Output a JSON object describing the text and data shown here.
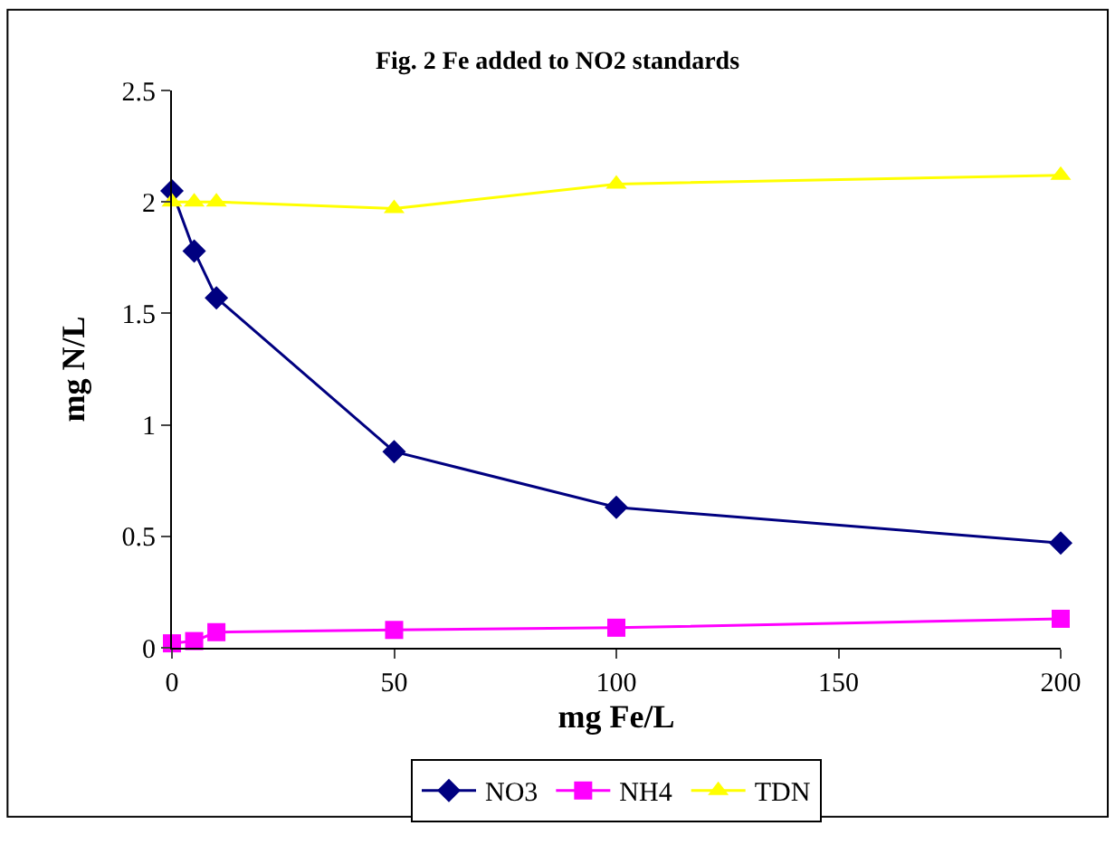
{
  "chart_data": {
    "type": "line",
    "title": "Fig. 2 Fe added to NO2 standards",
    "xlabel": "mg Fe/L",
    "ylabel": "mg N/L",
    "x": [
      0,
      5,
      10,
      50,
      100,
      200
    ],
    "series": [
      {
        "name": "NO3",
        "color": "#000080",
        "marker": "diamond",
        "values": [
          2.05,
          1.78,
          1.57,
          0.88,
          0.63,
          0.47
        ]
      },
      {
        "name": "NH4",
        "color": "#ff00ff",
        "marker": "square",
        "values": [
          0.02,
          0.03,
          0.07,
          0.08,
          0.09,
          0.13
        ]
      },
      {
        "name": "TDN",
        "color": "#ffff00",
        "marker": "triangle",
        "values": [
          2.0,
          2.0,
          2.0,
          1.97,
          2.08,
          2.12
        ]
      }
    ],
    "xlim": [
      0,
      200
    ],
    "xticks": [
      0,
      50,
      100,
      150,
      200
    ],
    "ylim": [
      0,
      2.5
    ],
    "yticks": [
      0,
      0.5,
      1,
      1.5,
      2,
      2.5
    ],
    "legend": "bottom",
    "line_style": "solid"
  }
}
